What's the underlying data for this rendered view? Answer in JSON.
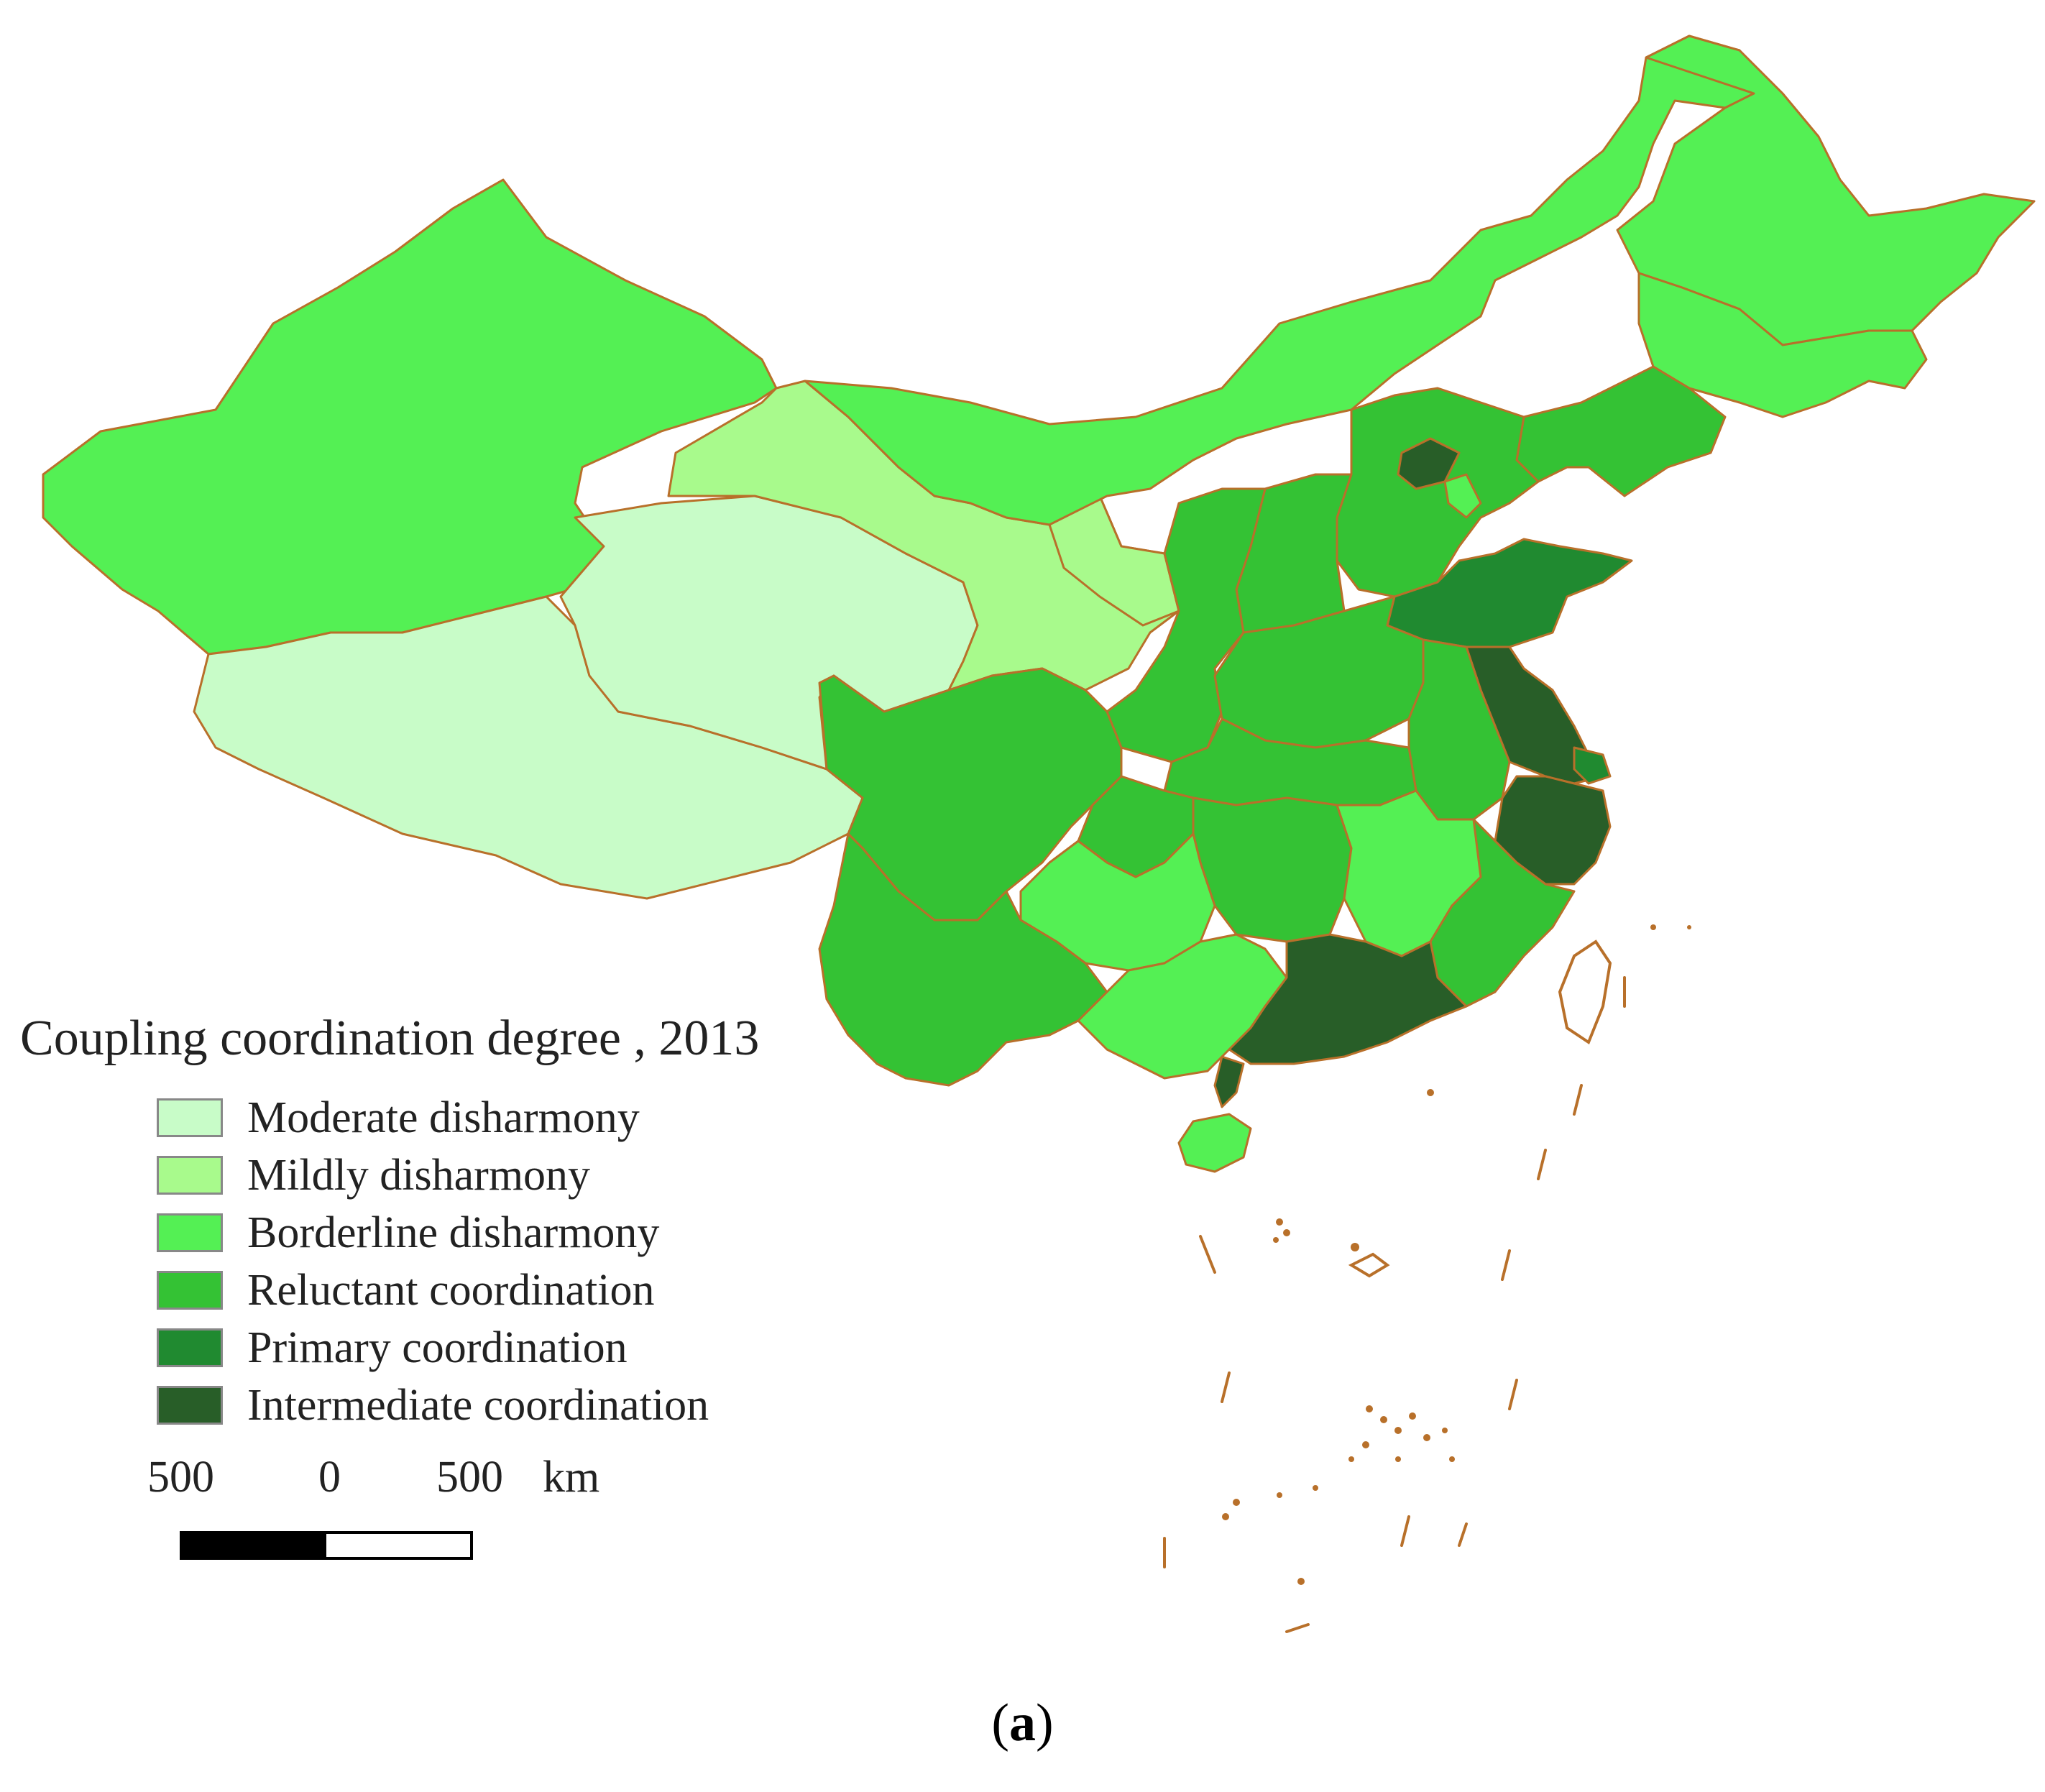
{
  "legend": {
    "title": "Coupling coordination degree , 2013",
    "items": [
      {
        "label": "Moderate disharmony",
        "color": "#c8fcc8"
      },
      {
        "label": "Mildly disharmony",
        "color": "#a8fa8c"
      },
      {
        "label": "Borderline disharmony",
        "color": "#54f054"
      },
      {
        "label": "Reluctant coordination",
        "color": "#34c234"
      },
      {
        "label": "Primary coordination",
        "color": "#208a30"
      },
      {
        "label": "Intermediate coordination",
        "color": "#285e28"
      }
    ]
  },
  "scale": {
    "left": "500",
    "middle": "0",
    "right": "500",
    "unit": "km"
  },
  "caption": {
    "open": "(",
    "letter": "a",
    "close": ")"
  }
}
